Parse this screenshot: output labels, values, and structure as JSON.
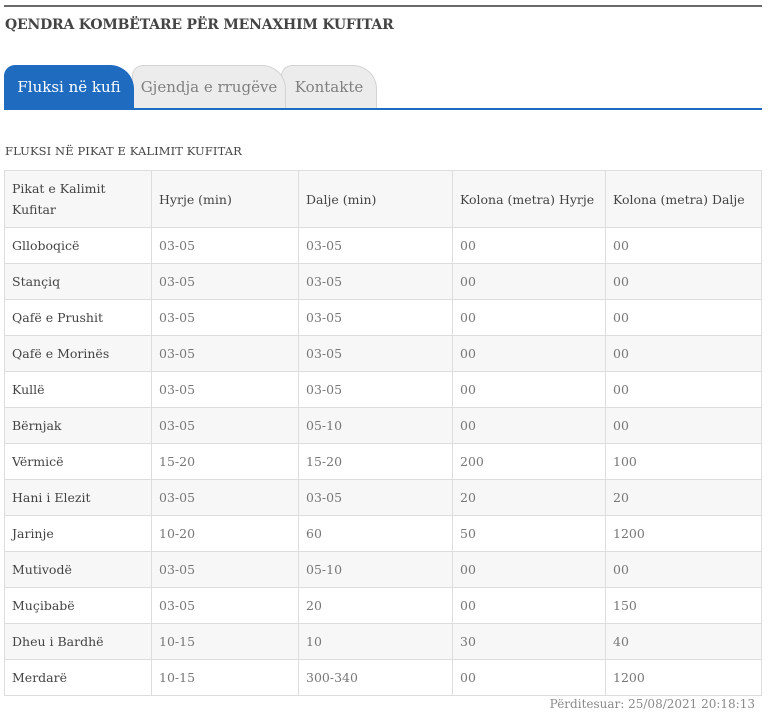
{
  "header": {
    "title": "QENDRA KOMBËTARE PËR MENAXHIM KUFITAR"
  },
  "tabs": [
    {
      "label": "Fluksi në kufi",
      "active": true
    },
    {
      "label": "Gjendja e rrugëve",
      "active": false
    },
    {
      "label": "Kontakte",
      "active": false
    }
  ],
  "section": {
    "title": "FLUKSI NË PIKAT E KALIMIT KUFITAR"
  },
  "table": {
    "headers": [
      "Pikat e Kalimit Kufitar",
      "Hyrje (min)",
      "Dalje (min)",
      "Kolona (metra) Hyrje",
      "Kolona (metra) Dalje"
    ],
    "rows": [
      [
        "Glloboqicë",
        "03-05",
        "03-05",
        "00",
        "00"
      ],
      [
        "Stançiq",
        "03-05",
        "03-05",
        "00",
        "00"
      ],
      [
        "Qafë e Prushit",
        "03-05",
        "03-05",
        "00",
        "00"
      ],
      [
        "Qafë e Morinës",
        "03-05",
        "03-05",
        "00",
        "00"
      ],
      [
        "Kullë",
        "03-05",
        "03-05",
        "00",
        "00"
      ],
      [
        "Bërnjak",
        "03-05",
        "05-10",
        "00",
        "00"
      ],
      [
        "Vërmicë",
        "15-20",
        "15-20",
        "200",
        "100"
      ],
      [
        "Hani i Elezit",
        "03-05",
        "03-05",
        "20",
        "20"
      ],
      [
        "Jarinje",
        "10-20",
        "60",
        "50",
        "1200"
      ],
      [
        "Mutivodë",
        "03-05",
        "05-10",
        "00",
        "00"
      ],
      [
        "Muçibabë",
        "03-05",
        "20",
        "00",
        "150"
      ],
      [
        "Dheu i Bardhë",
        "10-15",
        "10",
        "30",
        "40"
      ],
      [
        "Merdarë",
        "10-15",
        "300-340",
        "00",
        "1200"
      ]
    ]
  },
  "footer": {
    "updated": "Përditesuar: 25/08/2021 20:18:13"
  },
  "colors": {
    "accent": "#1f6bbf",
    "tab_inactive": "#ececec",
    "row_alt": "#f7f7f7"
  }
}
